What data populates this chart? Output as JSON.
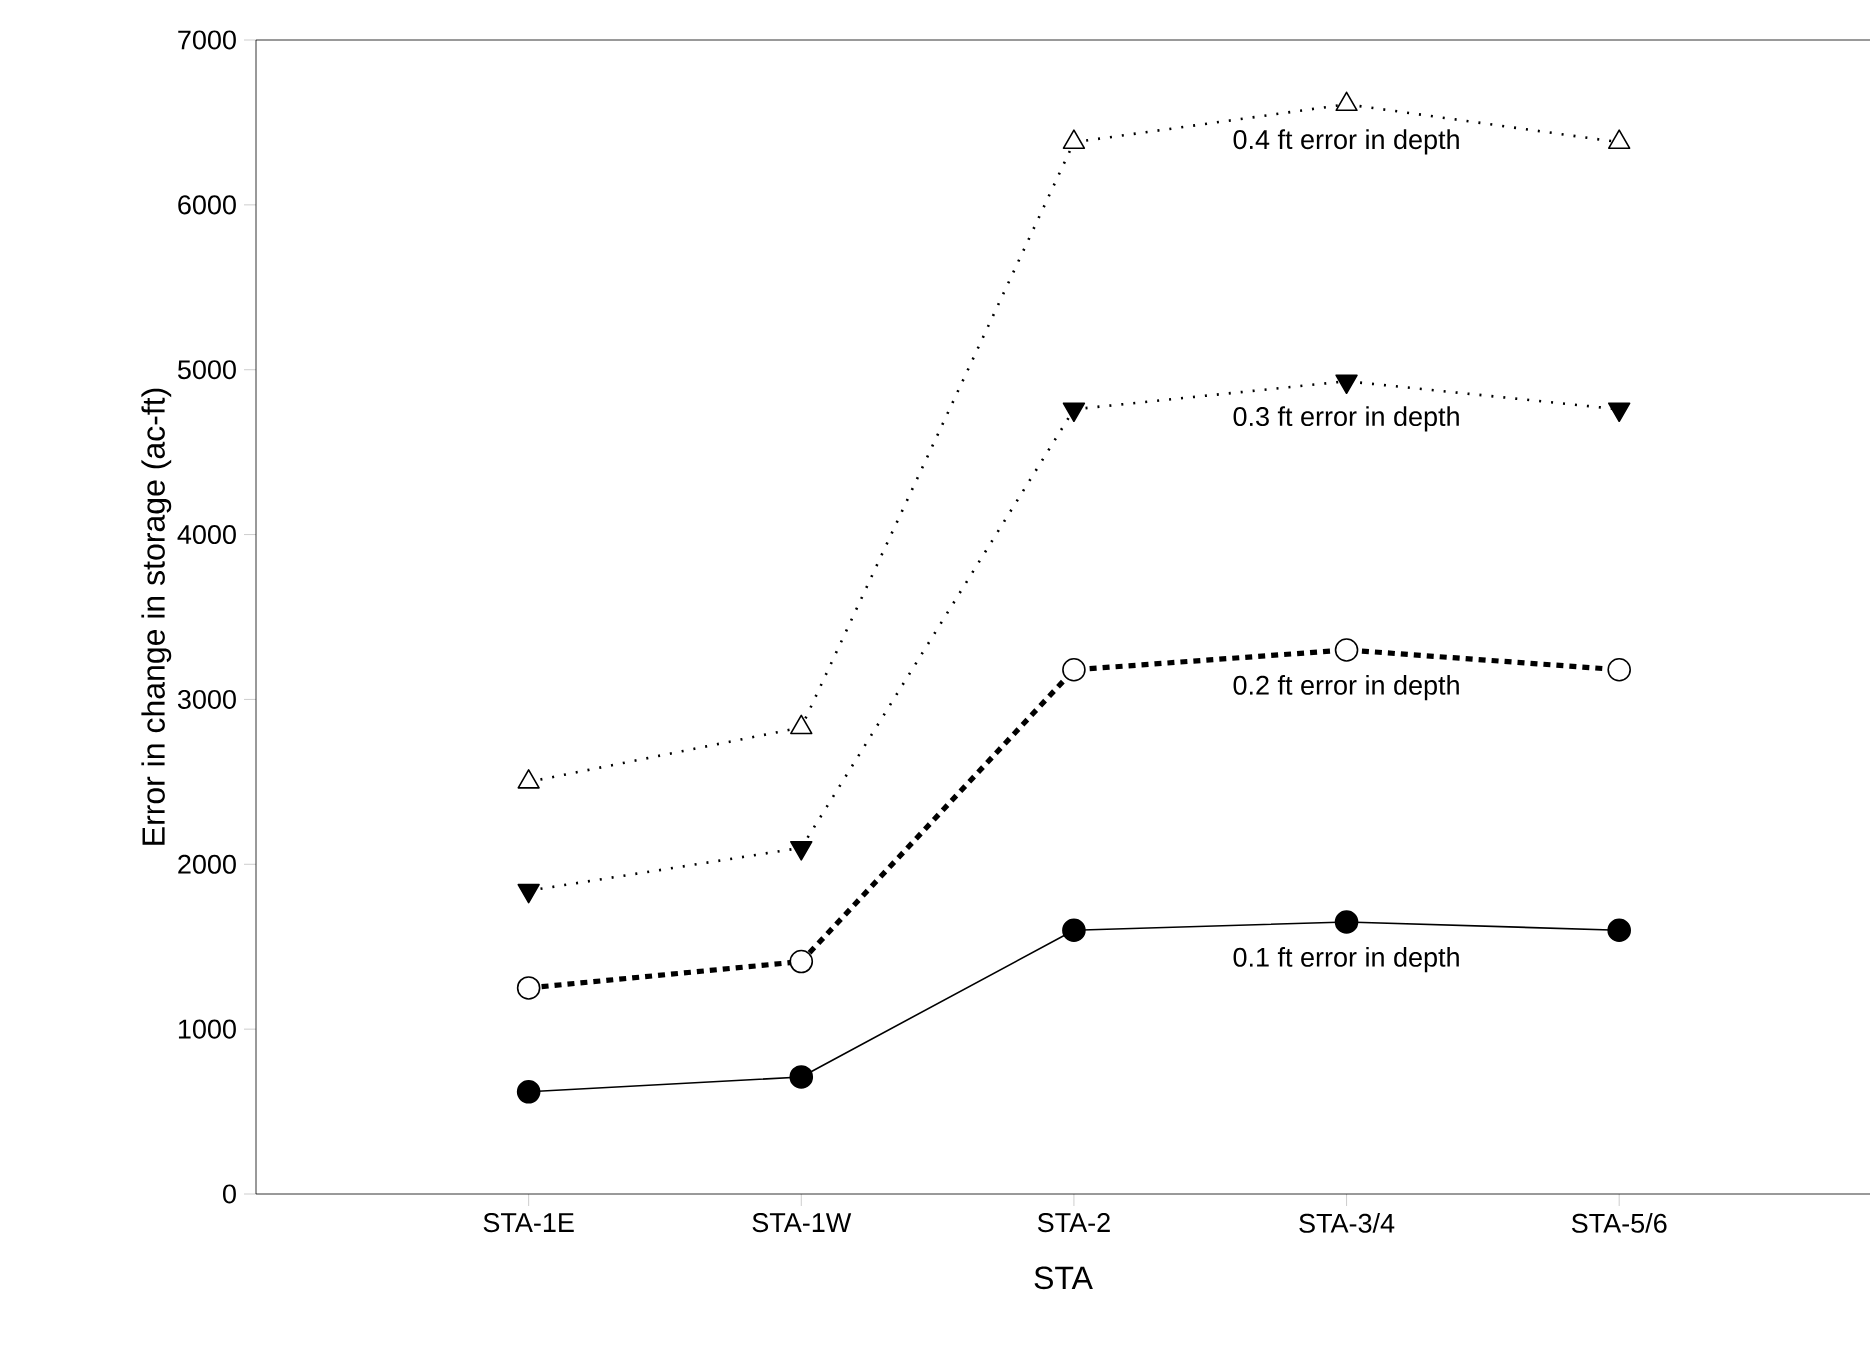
{
  "chart_data": {
    "type": "line",
    "xlabel": "STA",
    "ylabel": "Error in change in storage (ac-ft)",
    "categories": [
      "STA-1E",
      "STA-1W",
      "STA-2",
      "STA-3/4",
      "STA-5/6"
    ],
    "series": [
      {
        "color": "#000000",
        "values": [
          620,
          710,
          1600,
          1650,
          1600
        ],
        "line_style": "solid",
        "marker": "circle"
      },
      {
        "color": "#000000",
        "values": [
          1250,
          1410,
          3180,
          3300,
          3180
        ],
        "line_style": "dashed",
        "marker": "circle"
      },
      {
        "color": "#000000",
        "values": [
          1840,
          2100,
          4760,
          4930,
          4760
        ],
        "line_style": "dotted",
        "marker": "triangle"
      },
      {
        "color": "#000000",
        "values": [
          2500,
          2830,
          6380,
          6610,
          6380
        ],
        "line_style": "dotted",
        "marker": "triangle"
      }
    ],
    "annotations": [
      "0.1 ft error in depth",
      "0.2 ft error in depth",
      "0.3 ft error in depth",
      "0.4 ft error in depth"
    ],
    "ylim": [
      0,
      7000
    ],
    "yticks": [
      0,
      1000,
      2000,
      3000,
      4000,
      5000,
      6000,
      7000
    ],
    "grid": false
  }
}
